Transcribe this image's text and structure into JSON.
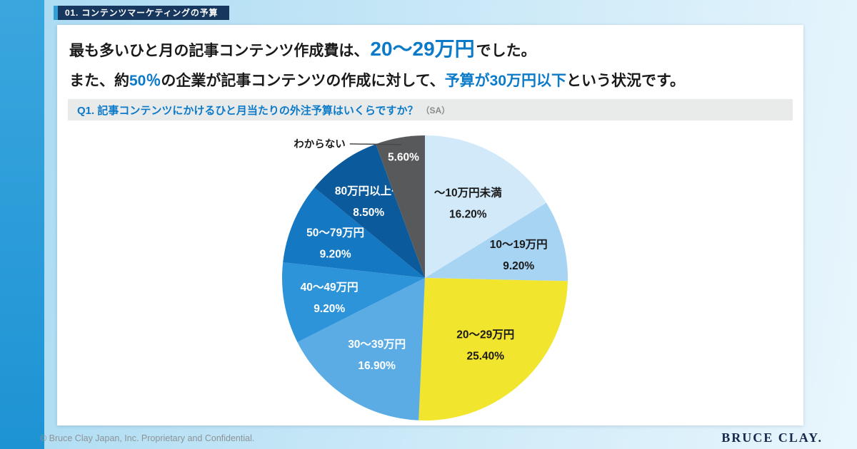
{
  "colors": {
    "accent": "#0b7ac9",
    "strip": "#2f9fd6",
    "badge-bg": "#17375e",
    "question-bg": "#e9eaea",
    "footer-text": "#8e9396",
    "logo": "#172a4d"
  },
  "badge": {
    "label": "01. コンテンツマーケティングの予算"
  },
  "headline": {
    "line1_pre": "最も多いひと月の記事コンテンツ作成費は、",
    "line1_highlight": "20〜29万円",
    "line1_post": "でした。",
    "line2_pre": "また、約",
    "line2_highlight1": "50％",
    "line2_mid": "の企業が記事コンテンツの作成に対して、",
    "line2_highlight2": "予算が30万円以下",
    "line2_post": "という状況です。"
  },
  "question": {
    "label": "Q1. 記事コンテンツにかけるひと月当たりの外注予算はいくらですか？",
    "suffix": "（SA）"
  },
  "footer": {
    "copyright": "© Bruce Clay Japan, Inc. Proprietary and Confidential.",
    "logo": "BRUCE CLAY."
  },
  "chart_data": {
    "type": "pie",
    "title": "Q1. 記事コンテンツにかけるひと月当たりの外注予算はいくらですか？（SA）",
    "start_angle_deg": -90,
    "direction": "clockwise",
    "legend": "labels-on-slices",
    "slices": [
      {
        "label": "〜10万円未満",
        "value": 16.2,
        "display": "16.20%",
        "color": "#d2e9f9",
        "text_color": "#1a1a1a"
      },
      {
        "label": "10〜19万円",
        "value": 9.2,
        "display": "9.20%",
        "color": "#a7d4f3",
        "text_color": "#1a1a1a"
      },
      {
        "label": "20〜29万円",
        "value": 25.4,
        "display": "25.40%",
        "color": "#f2e52e",
        "text_color": "#1a1a1a"
      },
      {
        "label": "30〜39万円",
        "value": 16.9,
        "display": "16.90%",
        "color": "#5bace4",
        "text_color": "#ffffff"
      },
      {
        "label": "40〜49万円",
        "value": 9.2,
        "display": "9.20%",
        "color": "#2e94da",
        "text_color": "#ffffff"
      },
      {
        "label": "50〜79万円",
        "value": 9.2,
        "display": "9.20%",
        "color": "#1478c2",
        "text_color": "#ffffff"
      },
      {
        "label": "80万円以上〜",
        "value": 8.5,
        "display": "8.50%",
        "color": "#0b5a9b",
        "text_color": "#ffffff"
      },
      {
        "label": "わからない",
        "value": 5.6,
        "display": "5.60%",
        "color": "#58595b",
        "text_color": "#ffffff",
        "label_outside": true
      }
    ]
  }
}
